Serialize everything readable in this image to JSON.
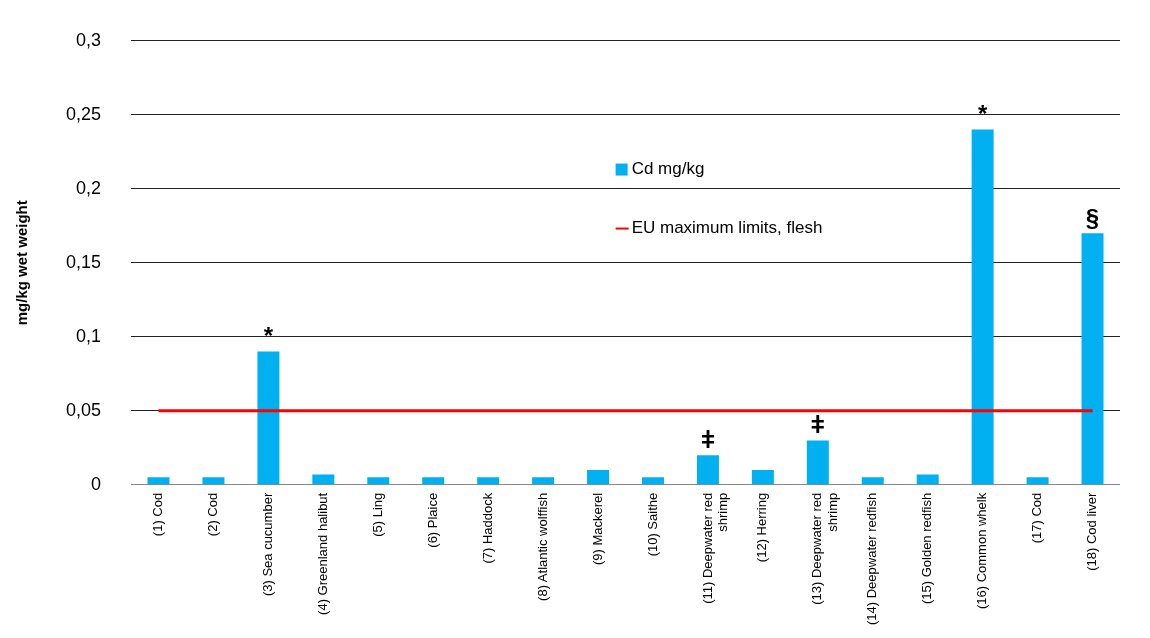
{
  "chart_data": {
    "type": "bar",
    "ylabel": "mg/kg wet weight",
    "categories": [
      "(1) Cod",
      "(2) Cod",
      "(3) Sea cucumber",
      "(4) Greenland halibut",
      "(5) Ling",
      "(6) Plaice",
      "(7) Haddock",
      "(8) Atlantic wolffish",
      "(9) Mackerel",
      "(10) Saithe",
      "(11) Deepwater red shrimp",
      "(12) Herring",
      "(13) Deepwater red shrimp",
      "(14) Deepwater redfish",
      "(15) Golden redfish",
      "(16) Common whelk",
      "(17) Cod",
      "(18) Cod liver"
    ],
    "series": [
      {
        "name": "Cd mg/kg",
        "color": "#00b0f0",
        "values": [
          0.005,
          0.005,
          0.09,
          0.007,
          0.005,
          0.005,
          0.005,
          0.005,
          0.01,
          0.005,
          0.02,
          0.01,
          0.03,
          0.005,
          0.007,
          0.24,
          0.005,
          0.17
        ]
      },
      {
        "name": "EU maximum limits, flesh",
        "type": "line",
        "color": "#ff0000",
        "values": [
          0.05,
          0.05,
          0.05,
          0.05,
          0.05,
          0.05,
          0.05,
          0.05,
          0.05,
          0.05,
          0.05,
          0.05,
          0.05,
          0.05,
          0.05,
          0.05,
          0.05,
          0.05
        ]
      }
    ],
    "ylim": [
      0,
      0.3
    ],
    "yticks": [
      0,
      {
        "value": 0.05,
        "label": "0,05"
      },
      {
        "value": 0.1,
        "label": "0,1"
      },
      {
        "value": 0.15,
        "label": "0,15"
      },
      {
        "value": 0.2,
        "label": "0,2"
      },
      {
        "value": 0.25,
        "label": "0,25"
      },
      {
        "value": 0.3,
        "label": "0,3"
      }
    ],
    "grid": "y",
    "legend": "top",
    "marker": "none",
    "annotations": [
      {
        "text": "*",
        "x": "(3) Sea cucumber",
        "y": 0.09
      },
      {
        "text": "ǂ",
        "x": "(11) Deepwater red shrimp",
        "y": 0.02
      },
      {
        "text": "ǂ",
        "x": "(13) Deepwater red shrimp",
        "y": 0.03
      },
      {
        "text": "*",
        "x": "(16) Common whelk",
        "y": 0.24
      },
      {
        "text": "§",
        "x": "(18) Cod liver",
        "y": 0.17
      }
    ]
  }
}
